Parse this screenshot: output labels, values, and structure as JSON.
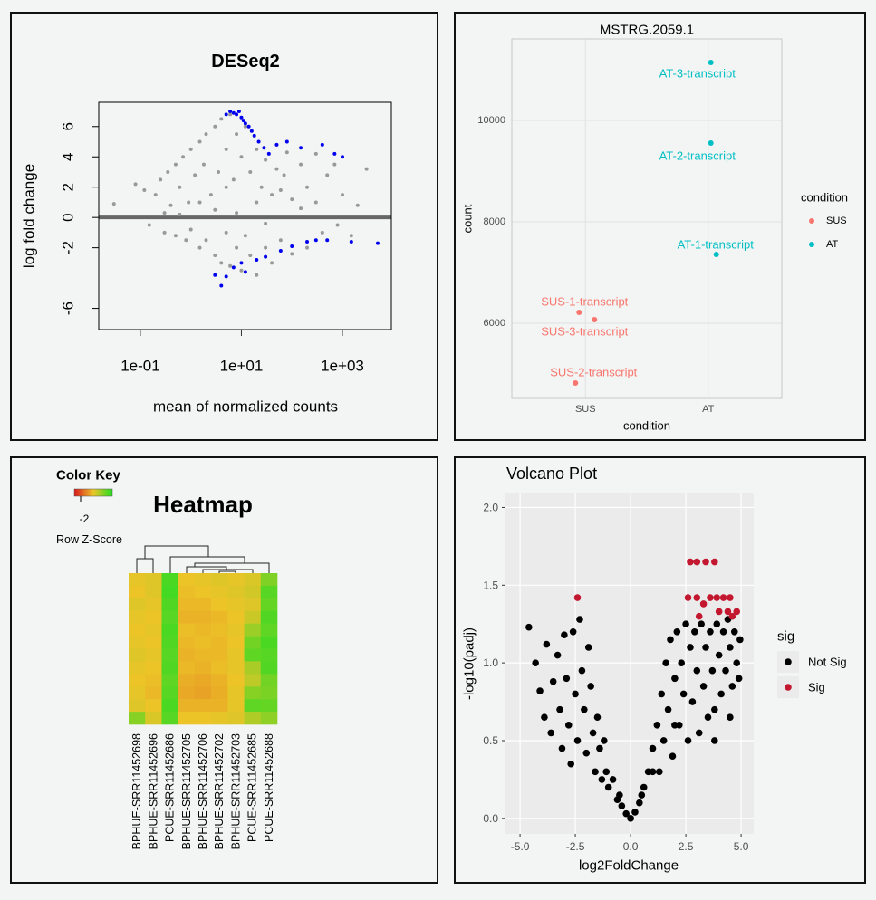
{
  "chart_data": [
    {
      "type": "scatter",
      "title": "DESeq2",
      "x_label": "mean of normalized counts",
      "y_label": "log fold change",
      "xlog": true,
      "xlim": [
        0.015,
        9300
      ],
      "xticks": [
        {
          "value": 0.1,
          "label": "1e-01"
        },
        {
          "value": 10,
          "label": "1e+01"
        },
        {
          "value": 1000,
          "label": "1e+03"
        }
      ],
      "ylim": [
        -7.4,
        7.6
      ],
      "yticks": [
        -6,
        -2,
        0,
        2,
        4,
        6
      ],
      "hline": 0,
      "series": [
        {
          "color": "#999999",
          "x": [
            0.03,
            0.08,
            0.12,
            0.15,
            0.2,
            0.25,
            0.3,
            0.35,
            0.4,
            0.5,
            0.5,
            0.6,
            0.7,
            0.8,
            0.9,
            1,
            1,
            1.2,
            1.5,
            1.5,
            1.8,
            2,
            2,
            2.5,
            3,
            3,
            3.5,
            4,
            4,
            5,
            5,
            6,
            6,
            7,
            8,
            8,
            10,
            10,
            12,
            12,
            15,
            15,
            20,
            20,
            25,
            30,
            30,
            40,
            40,
            50,
            60,
            70,
            80,
            100,
            100,
            150,
            200,
            200,
            300,
            300,
            400,
            500,
            700,
            800,
            1000,
            1500,
            2000,
            3000,
            0.6,
            3,
            8,
            30,
            150,
            5,
            20,
            60,
            1.5,
            0.3
          ],
          "values": [
            0.9,
            2.2,
            1.8,
            -0.5,
            1.5,
            2.5,
            -1.0,
            3.0,
            0.8,
            3.5,
            -1.2,
            2.0,
            4.0,
            -1.5,
            1.0,
            4.5,
            -0.8,
            2.8,
            5.0,
            -2.0,
            3.5,
            5.5,
            -1.5,
            1.5,
            6.0,
            -2.5,
            3.0,
            6.5,
            -3.0,
            4.5,
            -1.0,
            6.8,
            -3.2,
            2.5,
            5.5,
            -2.0,
            4.0,
            -3.5,
            6.0,
            -1.2,
            3.0,
            -2.5,
            4.5,
            -3.8,
            2.0,
            3.8,
            -2.0,
            1.5,
            -3.0,
            3.2,
            -1.5,
            2.8,
            4.3,
            1.2,
            -2.4,
            3.5,
            2.0,
            -2.0,
            1.0,
            4.2,
            -1.0,
            2.8,
            3.5,
            -0.5,
            1.5,
            -1.2,
            0.8,
            3.2,
            0.2,
            0.5,
            0.3,
            -0.4,
            0.6,
            2.0,
            1.0,
            1.8,
            1.0,
            0.3
          ]
        },
        {
          "color": "#0000ee",
          "x": [
            5,
            6,
            7,
            8,
            9,
            10,
            11,
            12,
            14,
            16,
            18,
            22,
            28,
            35,
            50,
            80,
            150,
            400,
            700,
            1000,
            3,
            4,
            5,
            7,
            10,
            12,
            20,
            30,
            60,
            100,
            200,
            300,
            500,
            1500,
            5000
          ],
          "values": [
            6.8,
            7.0,
            6.9,
            6.8,
            7.0,
            6.6,
            6.4,
            6.2,
            6.0,
            5.7,
            5.4,
            5.0,
            4.6,
            4.2,
            4.8,
            5.0,
            4.6,
            4.8,
            4.2,
            4.0,
            -3.8,
            -4.5,
            -3.9,
            -3.3,
            -3.0,
            -3.6,
            -2.8,
            -2.6,
            -2.2,
            -1.9,
            -1.6,
            -1.5,
            -1.5,
            -1.6,
            -1.7
          ]
        }
      ]
    },
    {
      "type": "scatter",
      "title": "MSTRG.2059.1",
      "x_label": "condition",
      "y_label": "count",
      "categories": [
        "SUS",
        "AT"
      ],
      "ylim": [
        4518,
        11607
      ],
      "yticks": [
        6000,
        8000,
        10000
      ],
      "grid": true,
      "legend_title": "condition",
      "series": [
        {
          "name": "SUS",
          "color": "#F8766D",
          "labels": [
            "SUS-1-transcript",
            "SUS-2-transcript",
            "SUS-3-transcript"
          ],
          "values": [
            6214,
            4821,
            6071
          ]
        },
        {
          "name": "AT",
          "color": "#00BFC4",
          "labels": [
            "AT-1-transcript",
            "AT-2-transcript",
            "AT-3-transcript"
          ],
          "values": [
            7357,
            9554,
            11143
          ]
        }
      ]
    },
    {
      "type": "heatmap",
      "title": "Heatmap",
      "key_title": "Color Key",
      "key_label": "Row Z-Score",
      "zlim": [
        -3,
        3
      ],
      "zticks": [
        -2
      ],
      "columns": [
        "BPHUE-SRR11452698",
        "BPHUE-SRR11452696",
        "PCUE-SRR11452686",
        "BPHUE-SRR11452705",
        "BPHUE-SRR11452706",
        "BPHUE-SRR11452702",
        "BPHUE-SRR11452703",
        "PCUE-SRR11452685",
        "PCUE-SRR11452688"
      ],
      "values": [
        [
          0.1,
          0.2,
          2.4,
          0.0,
          0.1,
          0.2,
          0.1,
          0.3,
          1.6
        ],
        [
          0.0,
          0.2,
          2.5,
          -0.1,
          0.0,
          0.1,
          0.2,
          0.4,
          2.2
        ],
        [
          0.2,
          0.1,
          2.3,
          -0.2,
          -0.2,
          0.0,
          0.1,
          0.2,
          2.0
        ],
        [
          0.1,
          0.0,
          2.2,
          -0.3,
          -0.3,
          -0.2,
          0.0,
          0.5,
          2.3
        ],
        [
          0.0,
          0.1,
          2.4,
          -0.1,
          -0.2,
          -0.1,
          0.1,
          1.2,
          2.1
        ],
        [
          0.1,
          0.0,
          2.3,
          -0.2,
          -0.1,
          -0.2,
          0.0,
          1.8,
          2.4
        ],
        [
          0.2,
          0.1,
          2.2,
          -0.3,
          -0.2,
          -0.2,
          0.1,
          2.1,
          2.2
        ],
        [
          0.1,
          0.0,
          2.3,
          -0.2,
          -0.3,
          -0.1,
          0.1,
          1.0,
          2.3
        ],
        [
          0.0,
          -0.1,
          2.1,
          -0.4,
          -0.5,
          -0.3,
          0.0,
          0.7,
          1.8
        ],
        [
          0.1,
          -0.2,
          2.2,
          -0.5,
          -0.6,
          -0.4,
          0.1,
          1.5,
          1.7
        ],
        [
          0.2,
          0.0,
          2.4,
          -0.3,
          -0.3,
          -0.3,
          0.1,
          2.1,
          2.0
        ],
        [
          1.5,
          0.3,
          2.2,
          0.0,
          0.0,
          0.1,
          0.2,
          0.9,
          1.4
        ]
      ]
    },
    {
      "type": "scatter",
      "title": "Volcano Plot",
      "x_label": "log2FoldChange",
      "y_label": "-log10(padj)",
      "xlim": [
        -5.7,
        5.57
      ],
      "xticks": [
        {
          "value": -5,
          "label": "-5.0"
        },
        {
          "value": -2.5,
          "label": "-2.5"
        },
        {
          "value": 0,
          "label": "0.0"
        },
        {
          "value": 2.5,
          "label": "2.5"
        },
        {
          "value": 5,
          "label": "5.0"
        }
      ],
      "ylim": [
        -0.1,
        2.09
      ],
      "yticks": [
        {
          "value": 0,
          "label": "0.0"
        },
        0.5,
        {
          "value": 1,
          "label": "1.0"
        },
        1.5,
        {
          "value": 2,
          "label": "2.0"
        }
      ],
      "grid": true,
      "legend_title": "sig",
      "series": [
        {
          "name": "Not Sig",
          "color": "#000000",
          "x": [
            -4.6,
            -4.3,
            -4.1,
            -3.9,
            -3.8,
            -3.6,
            -3.5,
            -3.3,
            -3.2,
            -3.1,
            -3.0,
            -2.9,
            -2.8,
            -2.7,
            -2.6,
            -2.5,
            -2.4,
            -2.3,
            -2.2,
            -2.1,
            -2.0,
            -1.9,
            -1.8,
            -1.7,
            -1.6,
            -1.5,
            -1.4,
            -1.3,
            -1.2,
            -1.1,
            -1.0,
            -0.8,
            -0.6,
            -0.4,
            -0.2,
            0,
            0.2,
            0.4,
            0.6,
            0.8,
            1.0,
            1.2,
            1.3,
            1.4,
            1.5,
            1.6,
            1.7,
            1.8,
            1.9,
            2.0,
            2.1,
            2.2,
            2.3,
            2.4,
            2.5,
            2.6,
            2.7,
            2.8,
            2.9,
            3.0,
            3.1,
            3.2,
            3.3,
            3.4,
            3.5,
            3.6,
            3.7,
            3.8,
            3.9,
            4.0,
            4.1,
            4.2,
            4.3,
            4.4,
            4.5,
            4.6,
            4.7,
            4.8,
            4.9,
            4.95,
            3.8,
            4.5,
            2.0,
            1.0,
            -0.5,
            0.5
          ],
          "values": [
            1.23,
            1.0,
            0.82,
            0.65,
            1.12,
            0.55,
            0.88,
            1.05,
            0.7,
            0.45,
            1.18,
            0.9,
            0.6,
            0.35,
            1.2,
            0.8,
            0.5,
            1.28,
            0.95,
            0.7,
            0.42,
            1.1,
            0.85,
            0.55,
            0.3,
            0.65,
            0.45,
            0.25,
            0.5,
            0.3,
            0.2,
            0.25,
            0.12,
            0.08,
            0.03,
            0.0,
            0.04,
            0.1,
            0.2,
            0.3,
            0.45,
            0.6,
            0.3,
            0.8,
            0.5,
            1.0,
            0.7,
            1.15,
            0.4,
            0.9,
            1.2,
            0.6,
            1.0,
            0.8,
            1.25,
            0.5,
            1.1,
            0.75,
            1.2,
            0.95,
            0.55,
            1.25,
            0.85,
            1.1,
            0.65,
            1.2,
            0.95,
            0.7,
            1.25,
            1.05,
            0.8,
            1.2,
            0.95,
            1.28,
            1.1,
            0.85,
            1.2,
            1.0,
            0.9,
            1.15,
            0.5,
            0.65,
            0.6,
            0.3,
            0.15,
            0.15
          ]
        },
        {
          "name": "Sig",
          "color": "#C3172F",
          "x": [
            2.7,
            3.0,
            3.4,
            3.8,
            2.6,
            3.0,
            3.6,
            3.9,
            4.2,
            4.5,
            -2.4,
            3.3,
            4.0,
            4.4,
            4.8,
            3.1,
            4.6
          ],
          "values": [
            1.65,
            1.65,
            1.65,
            1.65,
            1.42,
            1.42,
            1.42,
            1.42,
            1.42,
            1.42,
            1.42,
            1.38,
            1.33,
            1.33,
            1.33,
            1.3,
            1.3
          ]
        }
      ]
    }
  ]
}
